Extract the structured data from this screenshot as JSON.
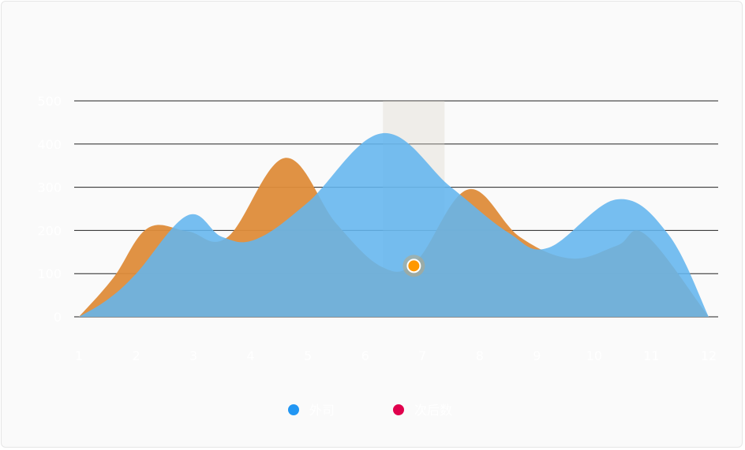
{
  "chart_data": {
    "type": "area",
    "categories": [
      "1",
      "2",
      "3",
      "4",
      "5",
      "6",
      "7",
      "8",
      "9",
      "10",
      "11",
      "12"
    ],
    "y_ticks": [
      "0",
      "100",
      "200",
      "300",
      "400",
      "500"
    ],
    "ylim": [
      0,
      500
    ],
    "grid": true,
    "legend_position": "bottom",
    "series": [
      {
        "name": "外司",
        "color": "#2196f3",
        "fill": "#63b5ee",
        "x": [
          1,
          1.5,
          2,
          2.9,
          3.5,
          4.1,
          5.0,
          6.3,
          7.5,
          8.5,
          9.2,
          10.4,
          11.3,
          12
        ],
        "values": [
          0,
          40,
          100,
          235,
          185,
          180,
          265,
          425,
          300,
          195,
          160,
          272,
          190,
          0
        ]
      },
      {
        "name": "次后数",
        "color": "#e0004d",
        "fill": "#de8c3a",
        "x": [
          1,
          1.6,
          2.2,
          2.9,
          3.6,
          4.6,
          5.5,
          6.3,
          6.9,
          7.8,
          8.7,
          9.6,
          10.4,
          10.9,
          12
        ],
        "values": [
          0,
          90,
          205,
          198,
          185,
          368,
          215,
          115,
          130,
          295,
          185,
          135,
          165,
          190,
          0
        ]
      }
    ],
    "tooltip_highlight_category": "7",
    "highlight_point": {
      "x": 6.85,
      "y": 118
    }
  }
}
